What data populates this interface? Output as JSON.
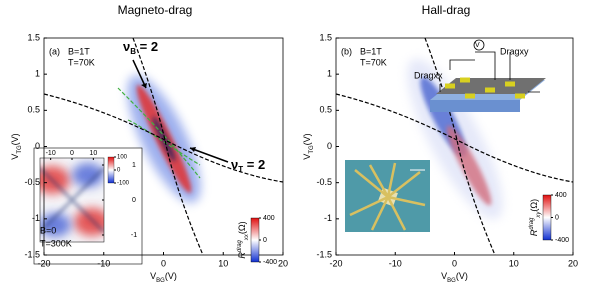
{
  "chart_data": [
    {
      "type": "heatmap",
      "title": "Magneto-drag",
      "panel_label": "(a)",
      "xlabel": {
        "main": "V",
        "sub": "BG",
        "unit": "(V)"
      },
      "ylabel": {
        "main": "V",
        "sub": "TG",
        "unit": "(V)"
      },
      "xlim": [
        -20,
        20
      ],
      "ylim": [
        -1.5,
        1.5
      ],
      "xticks": [
        -20,
        -10,
        0,
        10,
        20
      ],
      "yticks": [
        -1.5,
        -1,
        -0.5,
        0,
        0.5,
        1,
        1.5
      ],
      "annotations": [
        "B=1T",
        "T=70K"
      ],
      "nu_B": {
        "main": "ν",
        "sub": "B",
        "rest": " = 2"
      },
      "nu_T": {
        "main": "ν",
        "sub": "T",
        "rest": " = 2"
      },
      "colorbar": {
        "main": "R",
        "sup": "drag",
        "sub": "xx",
        "unit": "(Ω)",
        "clim": [
          -400,
          400
        ],
        "ticks": [
          -400,
          0,
          400
        ]
      },
      "inset": {
        "annotations": [
          "B=0",
          "T=300K"
        ],
        "xlim": [
          -15,
          15
        ],
        "ylim": [
          -1.2,
          1.2
        ],
        "xticks": [
          -10,
          0,
          10
        ],
        "yticks": [
          -1,
          0,
          1
        ],
        "clim": [
          -100,
          100
        ],
        "cticks": [
          -100,
          0,
          100
        ]
      }
    },
    {
      "type": "heatmap",
      "title": "Hall-drag",
      "panel_label": "(b)",
      "xlabel": {
        "main": "V",
        "sub": "BG",
        "unit": "(V)"
      },
      "ylabel": {
        "main": "V",
        "sub": "TG",
        "unit": "(V)"
      },
      "xlim": [
        -20,
        20
      ],
      "ylim": [
        -1.5,
        1.5
      ],
      "xticks": [
        -20,
        -10,
        0,
        10,
        20
      ],
      "yticks": [
        -1.5,
        -1,
        -0.5,
        0,
        0.5,
        1,
        1.5
      ],
      "annotations": [
        "B=1T",
        "T=70K"
      ],
      "schematic": [
        "V",
        "Dragxy",
        "Dragxx"
      ],
      "colorbar": {
        "main": "R",
        "sup": "drag",
        "sub": "xy",
        "unit": "(Ω)",
        "clim": [
          -400,
          400
        ],
        "ticks": [
          -400,
          0,
          400
        ]
      }
    }
  ]
}
